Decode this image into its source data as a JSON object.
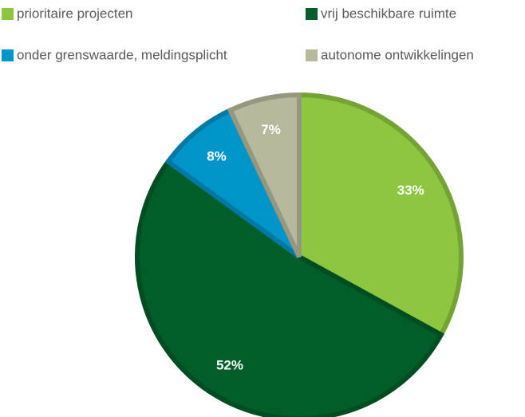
{
  "chart_data": {
    "type": "pie",
    "categories": [
      "prioritaire projecten",
      "vrij beschikbare ruimte",
      "onder grenswaarde, meldingsplicht",
      "autonome ontwikkelingen"
    ],
    "values": [
      33,
      52,
      8,
      7
    ],
    "value_labels": [
      "33%",
      "52%",
      "8%",
      "7%"
    ],
    "colors": [
      "#8dc63f",
      "#005e28",
      "#0095c9",
      "#b6b99b"
    ],
    "legend": "top"
  }
}
